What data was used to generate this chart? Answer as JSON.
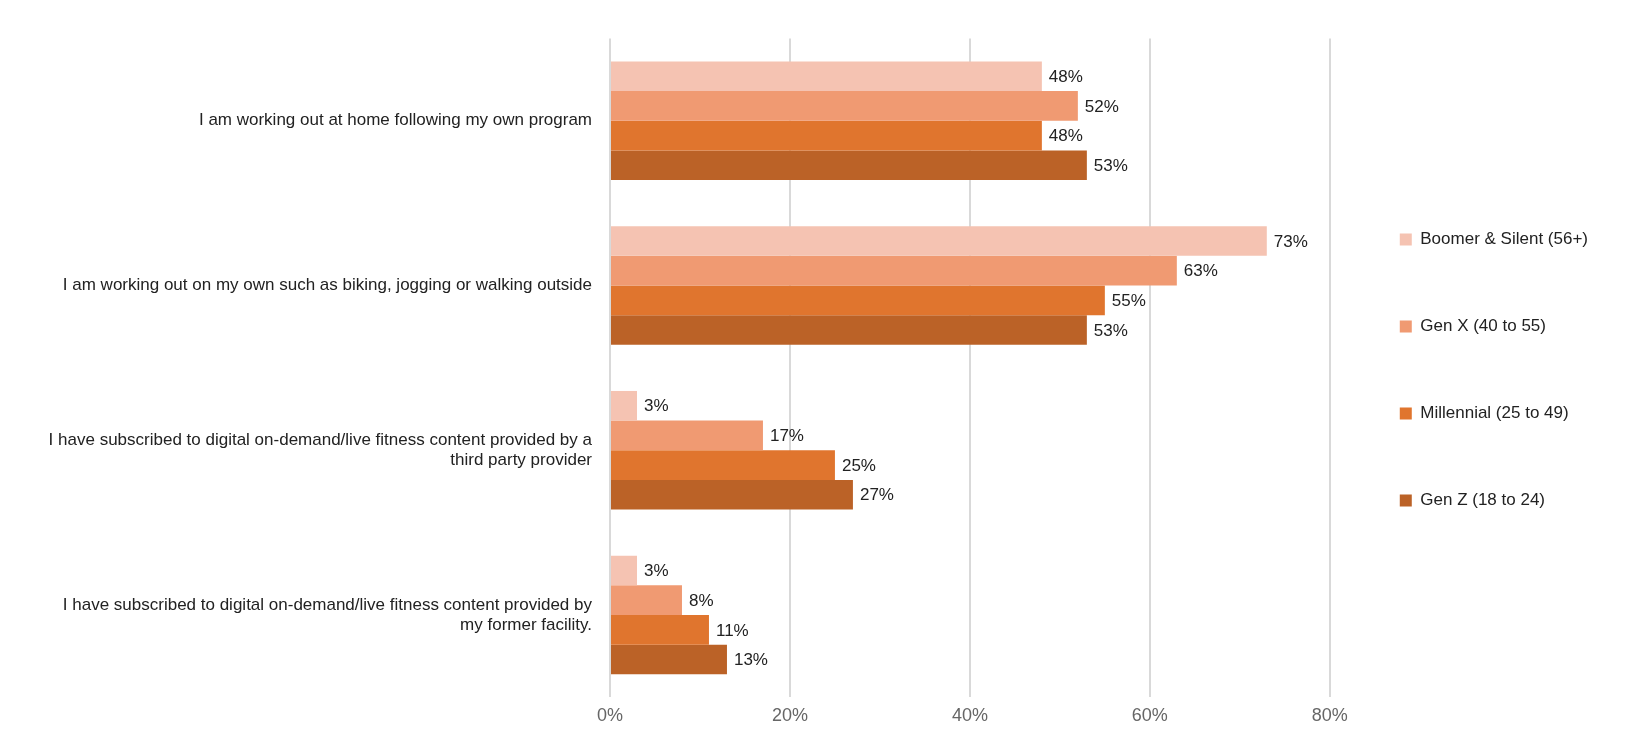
{
  "chart_data": {
    "type": "bar",
    "orientation": "horizontal",
    "categories": [
      "I am working out at home following my own program",
      "I am working out on my own such as biking, jogging or walking outside",
      "I have subscribed to digital on-demand/live fitness content provided by a third party provider",
      "I have subscribed to digital on-demand/live fitness content provided by my former facility."
    ],
    "series": [
      {
        "name": "Boomer & Silent (56+)",
        "color": "#f5c3b2",
        "values": [
          48,
          73,
          3,
          3
        ],
        "value_labels": [
          "48%",
          "73%",
          "3%",
          "3%"
        ]
      },
      {
        "name": "Gen X (40 to 55)",
        "color": "#f09a72",
        "values": [
          52,
          63,
          17,
          8
        ],
        "value_labels": [
          "52%",
          "63%",
          "17%",
          "8%"
        ]
      },
      {
        "name": "Millennial (25 to 49)",
        "color": "#e0752e",
        "values": [
          48,
          55,
          25,
          11
        ],
        "value_labels": [
          "48%",
          "55%",
          "25%",
          "11%"
        ]
      },
      {
        "name": "Gen Z (18 to 24)",
        "color": "#bb6227",
        "values": [
          53,
          53,
          27,
          13
        ],
        "value_labels": [
          "53%",
          "53%",
          "27%",
          "13%"
        ]
      }
    ],
    "xlim": [
      0,
      80
    ],
    "xticks": [
      {
        "value": 0,
        "label": "0%"
      },
      {
        "value": 20,
        "label": "20%"
      },
      {
        "value": 40,
        "label": "40%"
      },
      {
        "value": 60,
        "label": "60%"
      },
      {
        "value": 80,
        "label": "80%"
      }
    ],
    "grid": "x",
    "legend": "right"
  }
}
